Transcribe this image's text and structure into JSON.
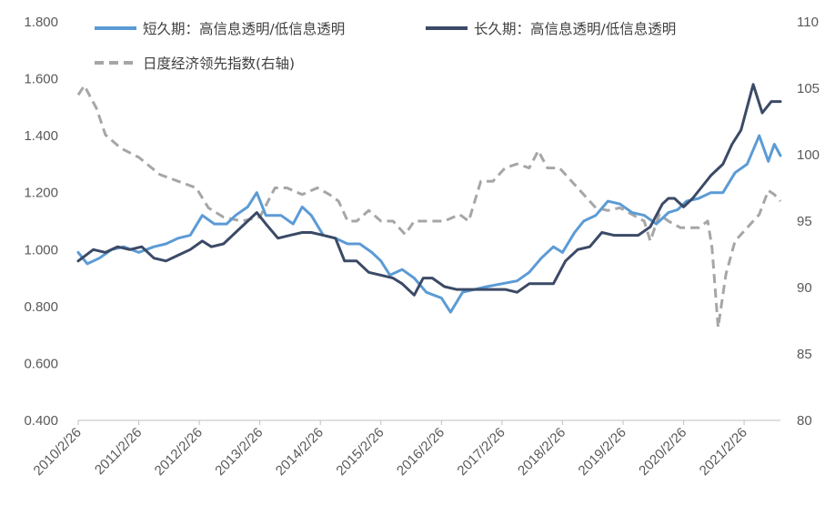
{
  "chart_data": {
    "type": "line",
    "legend_position": "top",
    "grid": false,
    "y_left_range": [
      0.4,
      1.8
    ],
    "y_left_ticks": [
      "0.400",
      "0.600",
      "0.800",
      "1.000",
      "1.200",
      "1.400",
      "1.600",
      "1.800"
    ],
    "y_right_range": [
      80,
      110
    ],
    "y_right_ticks": [
      "80",
      "85",
      "90",
      "95",
      "100",
      "105",
      "110"
    ],
    "x_ticks": [
      "2010/2/26",
      "2011/2/26",
      "2012/2/26",
      "2013/2/26",
      "2014/2/26",
      "2015/2/26",
      "2016/2/26",
      "2017/2/26",
      "2018/2/26",
      "2019/2/26",
      "2020/2/26",
      "2021/2/26"
    ],
    "x_range": [
      2010.15,
      2021.75
    ],
    "series": [
      {
        "name": "短久期：高信息透明/低信息透明",
        "axis": "left",
        "color": "#5b9bd5",
        "dash": "solid",
        "points": [
          [
            2010.15,
            0.99
          ],
          [
            2010.3,
            0.95
          ],
          [
            2010.5,
            0.97
          ],
          [
            2010.7,
            1.0
          ],
          [
            2010.9,
            1.01
          ],
          [
            2011.15,
            0.99
          ],
          [
            2011.4,
            1.01
          ],
          [
            2011.6,
            1.02
          ],
          [
            2011.8,
            1.04
          ],
          [
            2012.0,
            1.05
          ],
          [
            2012.2,
            1.12
          ],
          [
            2012.4,
            1.09
          ],
          [
            2012.6,
            1.09
          ],
          [
            2012.75,
            1.12
          ],
          [
            2012.95,
            1.15
          ],
          [
            2013.1,
            1.2
          ],
          [
            2013.25,
            1.12
          ],
          [
            2013.5,
            1.12
          ],
          [
            2013.7,
            1.09
          ],
          [
            2013.85,
            1.15
          ],
          [
            2014.0,
            1.12
          ],
          [
            2014.2,
            1.05
          ],
          [
            2014.4,
            1.04
          ],
          [
            2014.6,
            1.02
          ],
          [
            2014.8,
            1.02
          ],
          [
            2015.0,
            0.99
          ],
          [
            2015.15,
            0.96
          ],
          [
            2015.3,
            0.91
          ],
          [
            2015.5,
            0.93
          ],
          [
            2015.7,
            0.9
          ],
          [
            2015.9,
            0.85
          ],
          [
            2016.15,
            0.83
          ],
          [
            2016.3,
            0.78
          ],
          [
            2016.5,
            0.85
          ],
          [
            2016.7,
            0.86
          ],
          [
            2016.9,
            0.87
          ],
          [
            2017.15,
            0.88
          ],
          [
            2017.4,
            0.89
          ],
          [
            2017.6,
            0.92
          ],
          [
            2017.8,
            0.97
          ],
          [
            2018.0,
            1.01
          ],
          [
            2018.15,
            0.99
          ],
          [
            2018.35,
            1.06
          ],
          [
            2018.5,
            1.1
          ],
          [
            2018.7,
            1.12
          ],
          [
            2018.9,
            1.17
          ],
          [
            2019.1,
            1.16
          ],
          [
            2019.3,
            1.13
          ],
          [
            2019.5,
            1.12
          ],
          [
            2019.7,
            1.09
          ],
          [
            2019.9,
            1.13
          ],
          [
            2020.05,
            1.14
          ],
          [
            2020.2,
            1.17
          ],
          [
            2020.4,
            1.18
          ],
          [
            2020.6,
            1.2
          ],
          [
            2020.8,
            1.2
          ],
          [
            2021.0,
            1.27
          ],
          [
            2021.2,
            1.3
          ],
          [
            2021.4,
            1.4
          ],
          [
            2021.55,
            1.31
          ],
          [
            2021.65,
            1.37
          ],
          [
            2021.75,
            1.33
          ]
        ]
      },
      {
        "name": "长久期：高信息透明/低信息透明",
        "axis": "left",
        "color": "#3b4a66",
        "dash": "solid",
        "points": [
          [
            2010.15,
            0.96
          ],
          [
            2010.4,
            1.0
          ],
          [
            2010.6,
            0.99
          ],
          [
            2010.8,
            1.01
          ],
          [
            2011.0,
            1.0
          ],
          [
            2011.2,
            1.01
          ],
          [
            2011.4,
            0.97
          ],
          [
            2011.6,
            0.96
          ],
          [
            2011.8,
            0.98
          ],
          [
            2012.0,
            1.0
          ],
          [
            2012.2,
            1.03
          ],
          [
            2012.35,
            1.01
          ],
          [
            2012.55,
            1.02
          ],
          [
            2012.75,
            1.06
          ],
          [
            2012.95,
            1.1
          ],
          [
            2013.1,
            1.13
          ],
          [
            2013.25,
            1.09
          ],
          [
            2013.45,
            1.04
          ],
          [
            2013.65,
            1.05
          ],
          [
            2013.85,
            1.06
          ],
          [
            2014.0,
            1.06
          ],
          [
            2014.2,
            1.05
          ],
          [
            2014.4,
            1.04
          ],
          [
            2014.55,
            0.96
          ],
          [
            2014.75,
            0.96
          ],
          [
            2014.95,
            0.92
          ],
          [
            2015.15,
            0.91
          ],
          [
            2015.35,
            0.9
          ],
          [
            2015.5,
            0.88
          ],
          [
            2015.7,
            0.84
          ],
          [
            2015.85,
            0.9
          ],
          [
            2016.0,
            0.9
          ],
          [
            2016.2,
            0.87
          ],
          [
            2016.4,
            0.86
          ],
          [
            2016.6,
            0.86
          ],
          [
            2016.8,
            0.86
          ],
          [
            2017.0,
            0.86
          ],
          [
            2017.2,
            0.86
          ],
          [
            2017.4,
            0.85
          ],
          [
            2017.6,
            0.88
          ],
          [
            2017.8,
            0.88
          ],
          [
            2018.0,
            0.88
          ],
          [
            2018.2,
            0.96
          ],
          [
            2018.4,
            1.0
          ],
          [
            2018.6,
            1.01
          ],
          [
            2018.8,
            1.06
          ],
          [
            2019.0,
            1.05
          ],
          [
            2019.2,
            1.05
          ],
          [
            2019.4,
            1.05
          ],
          [
            2019.6,
            1.08
          ],
          [
            2019.8,
            1.16
          ],
          [
            2019.9,
            1.18
          ],
          [
            2020.0,
            1.18
          ],
          [
            2020.15,
            1.15
          ],
          [
            2020.3,
            1.18
          ],
          [
            2020.45,
            1.22
          ],
          [
            2020.6,
            1.26
          ],
          [
            2020.8,
            1.3
          ],
          [
            2020.95,
            1.37
          ],
          [
            2021.1,
            1.42
          ],
          [
            2021.3,
            1.58
          ],
          [
            2021.45,
            1.48
          ],
          [
            2021.6,
            1.52
          ],
          [
            2021.75,
            1.52
          ]
        ]
      },
      {
        "name": "日度经济领先指数(右轴)",
        "axis": "right",
        "color": "#a6a6a6",
        "dash": "dashed",
        "points": [
          [
            2010.15,
            104.5
          ],
          [
            2010.25,
            105.2
          ],
          [
            2010.45,
            103.5
          ],
          [
            2010.6,
            101.5
          ],
          [
            2010.85,
            100.5
          ],
          [
            2011.15,
            99.8
          ],
          [
            2011.5,
            98.5
          ],
          [
            2011.8,
            98.0
          ],
          [
            2012.1,
            97.5
          ],
          [
            2012.3,
            96.0
          ],
          [
            2012.55,
            95.3
          ],
          [
            2012.85,
            95.0
          ],
          [
            2013.15,
            95.3
          ],
          [
            2013.4,
            97.5
          ],
          [
            2013.6,
            97.5
          ],
          [
            2013.85,
            97.0
          ],
          [
            2014.1,
            97.5
          ],
          [
            2014.3,
            97.0
          ],
          [
            2014.45,
            96.5
          ],
          [
            2014.6,
            95.0
          ],
          [
            2014.75,
            95.0
          ],
          [
            2014.95,
            95.8
          ],
          [
            2015.15,
            95.0
          ],
          [
            2015.35,
            95.0
          ],
          [
            2015.55,
            94.0
          ],
          [
            2015.7,
            95.0
          ],
          [
            2015.9,
            95.0
          ],
          [
            2016.2,
            95.0
          ],
          [
            2016.45,
            95.5
          ],
          [
            2016.6,
            95.0
          ],
          [
            2016.8,
            98.0
          ],
          [
            2017.0,
            98.0
          ],
          [
            2017.2,
            99.0
          ],
          [
            2017.4,
            99.3
          ],
          [
            2017.6,
            99.0
          ],
          [
            2017.75,
            100.3
          ],
          [
            2017.9,
            99.0
          ],
          [
            2018.1,
            99.0
          ],
          [
            2018.3,
            98.0
          ],
          [
            2018.5,
            97.0
          ],
          [
            2018.7,
            96.0
          ],
          [
            2018.9,
            95.8
          ],
          [
            2019.1,
            96.0
          ],
          [
            2019.3,
            95.5
          ],
          [
            2019.5,
            95.0
          ],
          [
            2019.6,
            93.5
          ],
          [
            2019.75,
            95.5
          ],
          [
            2019.9,
            95.0
          ],
          [
            2020.1,
            94.5
          ],
          [
            2020.4,
            94.5
          ],
          [
            2020.55,
            95.0
          ],
          [
            2020.62,
            93.0
          ],
          [
            2020.72,
            87.0
          ],
          [
            2020.85,
            91.0
          ],
          [
            2021.0,
            93.5
          ],
          [
            2021.2,
            94.5
          ],
          [
            2021.4,
            95.5
          ],
          [
            2021.55,
            97.3
          ],
          [
            2021.65,
            97.0
          ],
          [
            2021.75,
            96.5
          ]
        ]
      }
    ]
  }
}
